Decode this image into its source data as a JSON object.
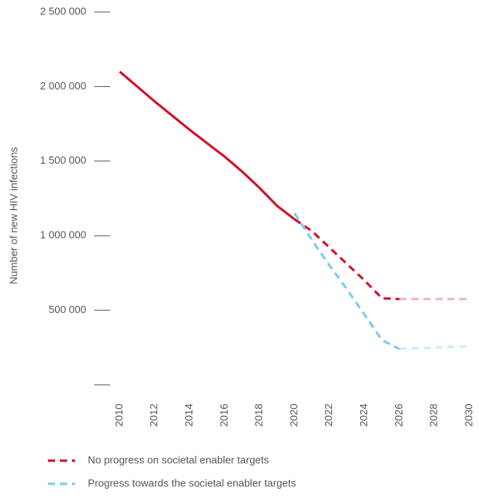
{
  "chart_data": {
    "type": "line",
    "y_label": "Number of new HIV infections",
    "x": [
      2010,
      2011,
      2012,
      2013,
      2014,
      2015,
      2016,
      2017,
      2018,
      2019,
      2020,
      2021,
      2022,
      2023,
      2024,
      2025,
      2026,
      2027,
      2028,
      2029,
      2030
    ],
    "xlim": [
      2010,
      2030
    ],
    "xticks": [
      2010,
      2012,
      2014,
      2016,
      2018,
      2020,
      2022,
      2024,
      2026,
      2028,
      2030
    ],
    "ylim": [
      0,
      2500000
    ],
    "yticks": [
      {
        "value": 500000,
        "label": "500 000"
      },
      {
        "value": 1000000,
        "label": "1 000 000"
      },
      {
        "value": 1500000,
        "label": "1 500 000"
      },
      {
        "value": 2000000,
        "label": "2 000 000"
      },
      {
        "value": 2500000,
        "label": "2 500 000"
      }
    ],
    "dash_from": 2020,
    "fade_from": 2026,
    "series": [
      {
        "name": "No progress on societal enabler targets",
        "color": "#d0112b",
        "fade_color": "#f3b3c1",
        "values": [
          2100000,
          2000000,
          1900000,
          1805000,
          1710000,
          1620000,
          1530000,
          1430000,
          1320000,
          1200000,
          1110000,
          1030000,
          920000,
          810000,
          700000,
          580000,
          575000,
          575000,
          575000,
          575000,
          575000
        ]
      },
      {
        "name": "Progress towards the societal enabler targets",
        "color": "#7ccbed",
        "fade_color": "#cde9f6",
        "values": [
          null,
          null,
          null,
          null,
          null,
          null,
          null,
          null,
          null,
          null,
          1150000,
          970000,
          800000,
          640000,
          470000,
          300000,
          240000,
          245000,
          250000,
          255000,
          258000
        ]
      }
    ]
  }
}
